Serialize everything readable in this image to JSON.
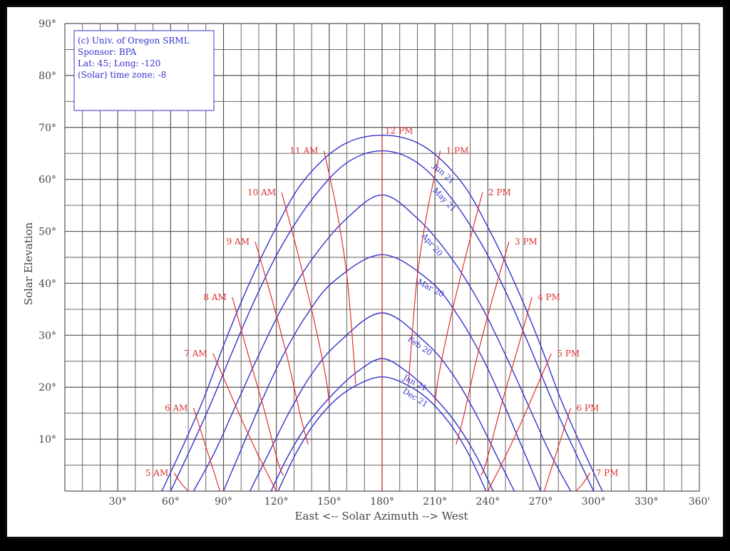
{
  "chart_data": {
    "type": "line",
    "xlabel": "East <-- Solar Azimuth --> West",
    "ylabel": "Solar Elevation",
    "xlim": [
      0,
      360
    ],
    "ylim": [
      0,
      90
    ],
    "x_ticks": [
      30,
      60,
      90,
      120,
      150,
      180,
      210,
      240,
      270,
      300,
      330,
      360
    ],
    "x_tick_labels": [
      "30°",
      "60°",
      "90°",
      "120°",
      "150°",
      "180°",
      "210°",
      "240°",
      "270°",
      "300°",
      "330°",
      "360'"
    ],
    "y_ticks": [
      10,
      20,
      30,
      40,
      50,
      60,
      70,
      80,
      90
    ],
    "y_tick_labels": [
      "10°",
      "20°",
      "30°",
      "40°",
      "50°",
      "60°",
      "70°",
      "80°",
      "90°"
    ],
    "grid": true,
    "info_box": [
      "(c) Univ. of Oregon SRML",
      "Sponsor: BPA",
      "Lat: 45; Long: -120",
      "(Solar) time zone: -8"
    ],
    "date_series": [
      {
        "name": "Jun 21",
        "x": [
          55,
          67,
          79,
          90,
          103,
          118,
          135,
          157,
          180,
          203,
          225,
          242,
          257,
          270,
          281,
          293,
          305
        ],
        "y": [
          0,
          8.7,
          18.0,
          28.0,
          38.7,
          49.5,
          59.5,
          66.5,
          68.5,
          66.5,
          59.5,
          49.5,
          38.7,
          28.0,
          18.0,
          8.7,
          0
        ]
      },
      {
        "name": "May 21",
        "x": [
          60,
          71.5,
          83,
          95,
          108,
          123,
          141,
          160,
          180,
          200,
          219,
          237,
          252,
          265,
          277,
          288.5,
          300
        ],
        "y": [
          0,
          8.3,
          17.0,
          26.8,
          37.0,
          47.2,
          56.5,
          63.2,
          65.5,
          63.2,
          56.5,
          47.2,
          37.0,
          26.8,
          17.0,
          8.3,
          0
        ]
      },
      {
        "name": "Apr 20",
        "x": [
          73,
          85,
          97,
          110,
          124,
          141,
          160,
          180,
          200,
          219,
          236,
          250,
          263,
          275,
          287
        ],
        "y": [
          0,
          7.5,
          16.5,
          26.2,
          35.8,
          45.0,
          52.5,
          57.0,
          52.5,
          45.0,
          35.8,
          26.2,
          16.5,
          7.5,
          0
        ]
      },
      {
        "name": "Mar 20",
        "x": [
          90,
          100,
          111,
          123,
          137,
          153,
          180,
          207,
          223,
          237,
          249,
          260,
          270
        ],
        "y": [
          0,
          8.0,
          16.8,
          25.6,
          33.8,
          40.5,
          45.5,
          40.5,
          33.8,
          25.6,
          16.8,
          8.0,
          0
        ]
      },
      {
        "name": "Feb 20",
        "x": [
          105,
          116,
          127,
          140,
          155,
          180,
          205,
          220,
          233,
          244,
          255
        ],
        "y": [
          0,
          7.5,
          15.0,
          22.5,
          28.5,
          34.3,
          28.5,
          22.5,
          15.0,
          7.5,
          0
        ]
      },
      {
        "name": "Jan 21",
        "x": [
          117,
          127,
          139,
          153,
          166,
          180,
          194,
          207,
          221,
          233,
          243
        ],
        "y": [
          0,
          7.0,
          13.5,
          19.0,
          23.0,
          25.5,
          23.0,
          19.0,
          13.5,
          7.0,
          0
        ]
      },
      {
        "name": "Dec 21",
        "x": [
          121,
          131,
          142,
          155,
          168,
          180,
          192,
          205,
          218,
          229,
          239
        ],
        "y": [
          0,
          7.2,
          13.2,
          18.0,
          20.8,
          22.0,
          20.8,
          18.0,
          13.2,
          7.2,
          0
        ]
      }
    ],
    "hour_series": [
      {
        "name": "5 AM",
        "x": [
          62,
          66,
          70
        ],
        "y": [
          3.5,
          1.5,
          0
        ]
      },
      {
        "name": "6 AM",
        "x": [
          73,
          81,
          88
        ],
        "y": [
          16,
          7.5,
          0
        ]
      },
      {
        "name": "7 AM",
        "x": [
          84,
          93,
          102,
          111,
          120
        ],
        "y": [
          26.5,
          19.5,
          12.5,
          6.0,
          0
        ]
      },
      {
        "name": "8 AM",
        "x": [
          95,
          103,
          112,
          121,
          124
        ],
        "y": [
          37.3,
          27.5,
          17.0,
          5.5,
          3.0
        ]
      },
      {
        "name": "9 AM",
        "x": [
          108,
          117,
          126,
          134,
          138
        ],
        "y": [
          48,
          37.5,
          26.0,
          14.0,
          9.0
        ]
      },
      {
        "name": "10 AM",
        "x": [
          123,
          132,
          141,
          148,
          150
        ],
        "y": [
          57.5,
          46.0,
          33.5,
          22.0,
          17.0
        ]
      },
      {
        "name": "11 AM",
        "x": [
          147,
          154,
          160,
          164,
          165
        ],
        "y": [
          65.5,
          54.5,
          41.5,
          25.5,
          20.5
        ]
      },
      {
        "name": "12 PM",
        "x": [
          180,
          180
        ],
        "y": [
          68.5,
          0
        ]
      },
      {
        "name": "1 PM",
        "x": [
          213,
          206,
          200,
          196,
          195
        ],
        "y": [
          65.5,
          54.5,
          41.5,
          25.5,
          20.5
        ]
      },
      {
        "name": "2 PM",
        "x": [
          237,
          228,
          219,
          212,
          210
        ],
        "y": [
          57.5,
          46.0,
          33.5,
          22.0,
          17.0
        ]
      },
      {
        "name": "3 PM",
        "x": [
          252,
          243,
          234,
          226,
          222
        ],
        "y": [
          48,
          37.5,
          26.0,
          14.0,
          9.0
        ]
      },
      {
        "name": "4 PM",
        "x": [
          265,
          257,
          248,
          239,
          236
        ],
        "y": [
          37.3,
          27.5,
          17.0,
          5.5,
          3.0
        ]
      },
      {
        "name": "5 PM",
        "x": [
          276,
          267,
          258,
          249,
          240
        ],
        "y": [
          26.5,
          19.5,
          12.5,
          6.0,
          0
        ]
      },
      {
        "name": "6 PM",
        "x": [
          287,
          279,
          272
        ],
        "y": [
          16,
          7.5,
          0
        ]
      },
      {
        "name": "7 PM",
        "x": [
          298,
          294,
          290
        ],
        "y": [
          3.5,
          1.5,
          0
        ]
      }
    ],
    "hour_label_texts": [
      "5 AM",
      "6 AM",
      "7 AM",
      "8 AM",
      "9 AM",
      "10 AM",
      "11 AM",
      "12 PM",
      "1 PM",
      "2 PM",
      "3 PM",
      "4 PM",
      "5 PM",
      "6 PM",
      "7 PM"
    ],
    "colors": {
      "date_lines": "#3333cc",
      "hour_lines": "#e03030",
      "grid": "#555555",
      "text": "#444444"
    }
  }
}
